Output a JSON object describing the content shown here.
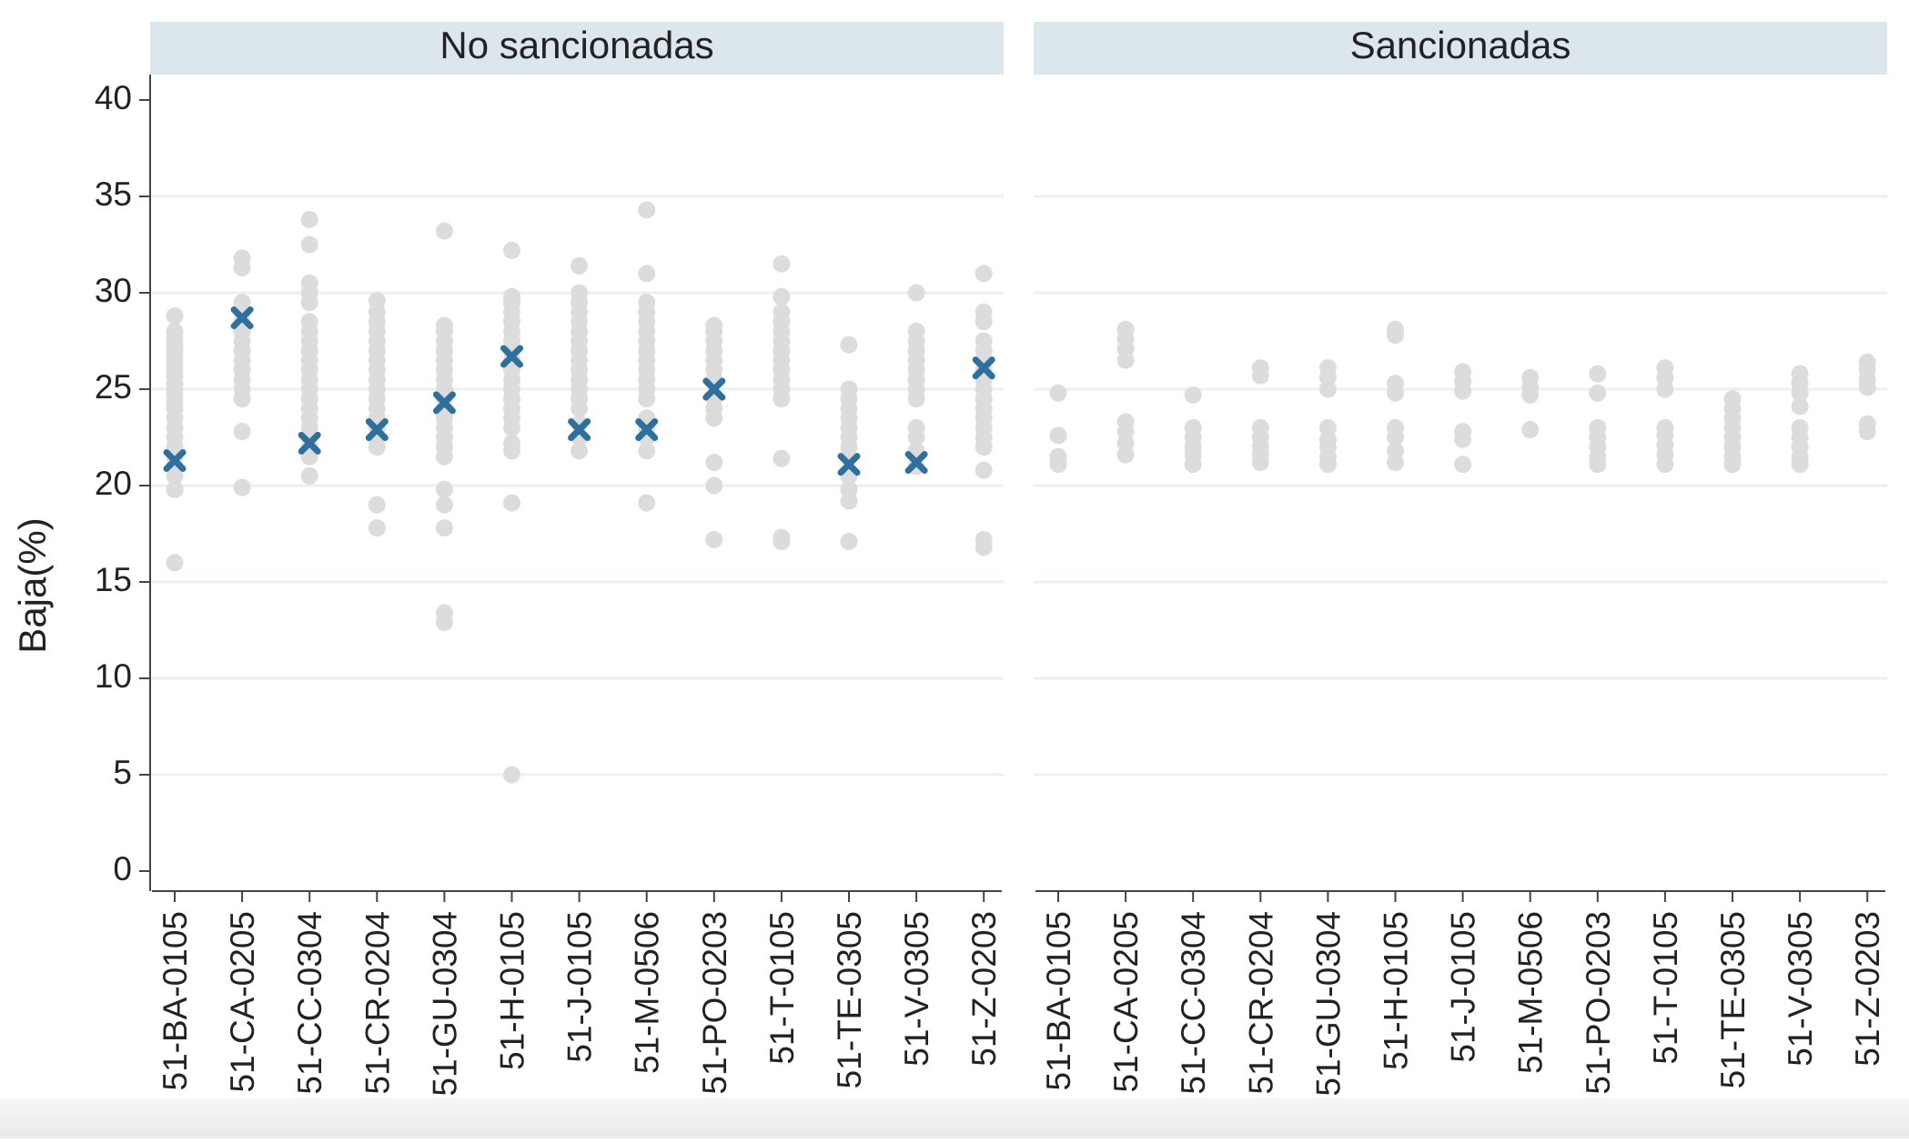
{
  "chart_data": {
    "type": "scatter",
    "ylabel": "Baja(%)",
    "ylim": [
      0,
      40
    ],
    "yticks": [
      0,
      5,
      10,
      15,
      20,
      25,
      30,
      35,
      40
    ],
    "grid": true,
    "categories": [
      "51-BA-0105",
      "51-CA-0205",
      "51-CC-0304",
      "51-CR-0204",
      "51-GU-0304",
      "51-H-0105",
      "51-J-0105",
      "51-M-0506",
      "51-PO-0203",
      "51-T-0105",
      "51-TE-0305",
      "51-V-0305",
      "51-Z-0203"
    ],
    "colors": {
      "points": "#dcdcdc",
      "marker": "#2e6f9e",
      "strip": "#dce6ed",
      "grid": "#eaf0f3",
      "axis": "#444444"
    },
    "panels": [
      {
        "title": "No sancionadas",
        "points": [
          [
            16.0,
            19.8,
            20.5,
            21.0,
            21.5,
            22.0,
            22.5,
            23.0,
            23.5,
            24.0,
            24.3,
            24.7,
            25.0,
            25.3,
            25.7,
            26.0,
            26.3,
            26.7,
            27.0,
            27.3,
            27.6,
            28.0,
            28.8
          ],
          [
            19.9,
            22.8,
            24.5,
            25.0,
            25.5,
            26.0,
            26.5,
            27.0,
            27.5,
            28.0,
            28.5,
            29.0,
            29.5,
            31.3,
            31.8
          ],
          [
            20.5,
            21.5,
            22.0,
            22.5,
            23.0,
            23.5,
            24.0,
            24.5,
            25.0,
            25.5,
            26.0,
            26.5,
            27.0,
            27.5,
            28.0,
            28.5,
            29.5,
            30.0,
            30.5,
            32.5,
            33.8
          ],
          [
            17.8,
            19.0,
            22.0,
            22.5,
            23.0,
            23.5,
            24.0,
            24.5,
            25.0,
            25.5,
            26.0,
            26.5,
            27.0,
            27.5,
            28.0,
            28.5,
            29.0,
            29.6
          ],
          [
            12.9,
            13.4,
            17.8,
            19.0,
            19.8,
            21.5,
            22.0,
            22.5,
            23.0,
            23.5,
            24.0,
            24.5,
            25.0,
            25.5,
            26.0,
            26.5,
            27.0,
            27.5,
            28.0,
            28.3,
            33.2
          ],
          [
            5.0,
            19.1,
            21.8,
            22.2,
            23.0,
            23.5,
            24.0,
            24.5,
            25.0,
            25.5,
            26.0,
            26.5,
            27.0,
            27.5,
            28.0,
            28.5,
            29.0,
            29.5,
            29.8,
            32.2
          ],
          [
            21.8,
            22.5,
            23.2,
            24.0,
            24.5,
            25.0,
            25.5,
            26.0,
            26.5,
            27.0,
            27.5,
            28.0,
            28.5,
            29.0,
            29.5,
            30.0,
            31.4
          ],
          [
            19.1,
            21.8,
            22.5,
            23.0,
            23.5,
            24.5,
            25.0,
            25.5,
            26.0,
            26.5,
            27.0,
            27.5,
            28.0,
            28.5,
            29.0,
            29.5,
            31.0,
            34.3
          ],
          [
            17.2,
            20.0,
            21.2,
            23.5,
            24.0,
            24.5,
            25.5,
            26.0,
            26.5,
            27.0,
            27.5,
            28.0,
            28.3
          ],
          [
            17.1,
            17.3,
            21.4,
            24.5,
            25.0,
            25.5,
            26.0,
            26.5,
            27.0,
            27.5,
            28.0,
            28.5,
            29.0,
            29.8,
            31.5
          ],
          [
            17.1,
            19.2,
            19.8,
            20.5,
            21.5,
            22.0,
            22.5,
            23.0,
            23.5,
            24.0,
            24.5,
            25.0,
            27.3
          ],
          [
            21.0,
            21.8,
            22.5,
            23.0,
            24.5,
            25.0,
            25.5,
            26.0,
            26.5,
            27.0,
            27.5,
            28.0,
            30.0
          ],
          [
            16.8,
            17.2,
            20.8,
            22.0,
            22.5,
            23.0,
            23.5,
            24.0,
            24.5,
            25.0,
            25.5,
            26.0,
            26.5,
            27.0,
            27.5,
            28.5,
            29.0,
            31.0
          ]
        ],
        "markers": [
          21.3,
          28.7,
          22.2,
          22.9,
          24.3,
          26.7,
          22.9,
          22.9,
          25.0,
          null,
          21.1,
          21.2,
          26.1
        ]
      },
      {
        "title": "Sancionadas",
        "points": [
          [
            21.1,
            21.5,
            22.6,
            24.8
          ],
          [
            21.6,
            22.2,
            22.8,
            23.3,
            26.5,
            27.1,
            27.6,
            28.1
          ],
          [
            21.1,
            21.6,
            22.0,
            22.5,
            23.0,
            24.7
          ],
          [
            21.2,
            21.6,
            22.0,
            22.5,
            23.0,
            25.7,
            26.1
          ],
          [
            21.1,
            21.5,
            22.0,
            22.4,
            23.0,
            25.0,
            25.6,
            26.1
          ],
          [
            21.2,
            21.8,
            22.5,
            23.0,
            24.8,
            25.3,
            27.8,
            28.1
          ],
          [
            21.1,
            22.4,
            22.8,
            24.9,
            25.4,
            25.9
          ],
          [
            22.9,
            24.7,
            25.1,
            25.6
          ],
          [
            21.1,
            21.5,
            22.0,
            22.5,
            23.0,
            24.8,
            25.8
          ],
          [
            21.1,
            21.6,
            22.1,
            22.6,
            23.0,
            25.0,
            25.6,
            26.1
          ],
          [
            21.1,
            21.5,
            22.0,
            22.5,
            23.0,
            23.5,
            24.0,
            24.5
          ],
          [
            21.1,
            21.5,
            22.0,
            22.5,
            23.0,
            24.1,
            24.8,
            25.3,
            25.8
          ],
          [
            22.8,
            23.2,
            25.1,
            25.5,
            26.0,
            26.4
          ]
        ],
        "markers": []
      }
    ]
  }
}
